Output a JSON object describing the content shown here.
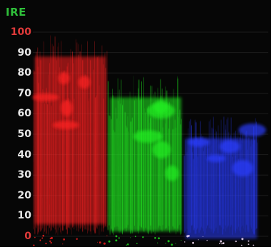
{
  "scope": {
    "title": "IRE",
    "colors": {
      "background": "#060606",
      "title": "#2fbf3a",
      "tick_top": "#e03a3a",
      "tick": "#e8e8e8",
      "tick_zero": "#e03a3a",
      "red": "#ff2020",
      "green": "#22ee22",
      "blue": "#2a3cff"
    }
  },
  "chart_data": {
    "type": "waveform",
    "ylabel": "IRE",
    "ylim": [
      0,
      100
    ],
    "ticks": [
      "100",
      "90",
      "80",
      "70",
      "60",
      "50",
      "40",
      "30",
      "20",
      "10",
      "0"
    ],
    "series": [
      {
        "name": "R",
        "low": 0,
        "high": 100
      },
      {
        "name": "G",
        "low": 0,
        "high": 80
      },
      {
        "name": "B",
        "low": 0,
        "high": 60
      }
    ]
  }
}
